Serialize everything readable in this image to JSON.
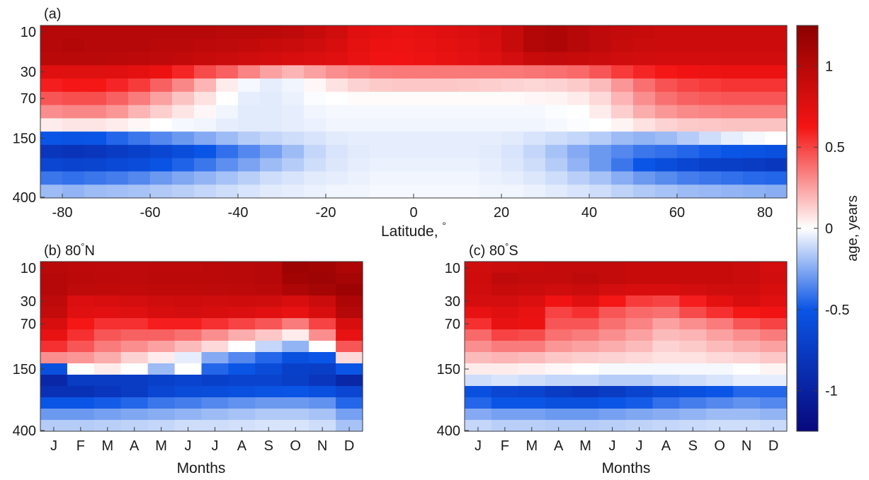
{
  "chart_data": [
    {
      "panel": "a",
      "type": "heatmap",
      "title": "(a)",
      "xlabel": "Latitude, °",
      "ylabel": "",
      "x_ticks": [
        "-80",
        "-60",
        "-40",
        "-20",
        "0",
        "20",
        "40",
        "60",
        "80"
      ],
      "y_ticks": [
        "10",
        "30",
        "70",
        "150",
        "400"
      ],
      "xlim": [
        -85,
        85
      ],
      "x_ticks_values": [
        -80,
        -60,
        -40,
        -20,
        0,
        20,
        40,
        60,
        80
      ],
      "y_levels_hPa": [
        10,
        15,
        20,
        30,
        50,
        70,
        100,
        125,
        150,
        200,
        250,
        300,
        400
      ],
      "x_centers": [
        -82.5,
        -77.5,
        -72.5,
        -67.5,
        -62.5,
        -57.5,
        -52.5,
        -47.5,
        -42.5,
        -37.5,
        -32.5,
        -27.5,
        -22.5,
        -17.5,
        -12.5,
        -7.5,
        -2.5,
        2.5,
        7.5,
        12.5,
        17.5,
        22.5,
        27.5,
        32.5,
        37.5,
        42.5,
        47.5,
        52.5,
        57.5,
        62.5,
        67.5,
        72.5,
        77.5,
        82.5
      ],
      "values": [
        [
          1.0,
          1.0,
          1.0,
          1.0,
          1.0,
          1.0,
          1.0,
          1.0,
          0.98,
          0.98,
          0.97,
          0.95,
          0.9,
          0.85,
          0.75,
          0.72,
          0.7,
          0.72,
          0.75,
          0.78,
          0.82,
          0.9,
          1.02,
          1.05,
          1.0,
          0.95,
          0.92,
          0.9,
          0.88,
          0.88,
          0.88,
          0.88,
          0.88,
          0.88
        ],
        [
          1.0,
          1.02,
          1.0,
          1.0,
          1.0,
          0.98,
          0.98,
          0.96,
          0.95,
          0.93,
          0.9,
          0.88,
          0.85,
          0.8,
          0.72,
          0.68,
          0.67,
          0.7,
          0.72,
          0.75,
          0.8,
          0.9,
          1.02,
          1.05,
          1.0,
          0.95,
          0.9,
          0.88,
          0.87,
          0.87,
          0.87,
          0.87,
          0.87,
          0.87
        ],
        [
          0.98,
          0.98,
          0.98,
          0.97,
          0.96,
          0.95,
          0.93,
          0.9,
          0.88,
          0.85,
          0.83,
          0.8,
          0.78,
          0.75,
          0.7,
          0.66,
          0.65,
          0.67,
          0.7,
          0.73,
          0.76,
          0.82,
          0.9,
          0.92,
          0.9,
          0.88,
          0.85,
          0.84,
          0.83,
          0.83,
          0.83,
          0.84,
          0.84,
          0.84
        ],
        [
          0.75,
          0.76,
          0.76,
          0.75,
          0.72,
          0.68,
          0.58,
          0.48,
          0.42,
          0.33,
          0.25,
          0.2,
          0.25,
          0.3,
          0.33,
          0.35,
          0.36,
          0.36,
          0.36,
          0.36,
          0.36,
          0.36,
          0.37,
          0.38,
          0.4,
          0.45,
          0.52,
          0.58,
          0.62,
          0.65,
          0.67,
          0.68,
          0.68,
          0.68
        ],
        [
          0.6,
          0.62,
          0.62,
          0.58,
          0.52,
          0.42,
          0.32,
          0.2,
          0.05,
          -0.02,
          -0.05,
          -0.03,
          0.02,
          0.08,
          0.12,
          0.14,
          0.15,
          0.15,
          0.15,
          0.14,
          0.13,
          0.12,
          0.11,
          0.12,
          0.14,
          0.18,
          0.28,
          0.38,
          0.46,
          0.5,
          0.52,
          0.54,
          0.54,
          0.54
        ],
        [
          0.45,
          0.47,
          0.47,
          0.42,
          0.35,
          0.25,
          0.16,
          0.08,
          0.0,
          -0.05,
          -0.06,
          -0.04,
          -0.01,
          0.0,
          0.01,
          0.01,
          0.01,
          0.01,
          0.01,
          0.01,
          0.01,
          0.01,
          0.02,
          0.03,
          0.05,
          0.1,
          0.2,
          0.3,
          0.38,
          0.42,
          0.44,
          0.45,
          0.45,
          0.45
        ],
        [
          0.3,
          0.32,
          0.32,
          0.28,
          0.2,
          0.13,
          0.07,
          0.02,
          -0.03,
          -0.06,
          -0.06,
          -0.05,
          -0.03,
          -0.02,
          -0.02,
          -0.02,
          -0.02,
          -0.02,
          -0.02,
          -0.02,
          -0.02,
          -0.02,
          -0.02,
          -0.01,
          0.0,
          0.05,
          0.13,
          0.22,
          0.28,
          0.31,
          0.33,
          0.34,
          0.34,
          0.34
        ],
        [
          0.05,
          0.07,
          0.07,
          0.05,
          0.02,
          0.0,
          -0.02,
          -0.03,
          -0.05,
          -0.06,
          -0.06,
          -0.05,
          -0.04,
          -0.03,
          -0.03,
          -0.03,
          -0.03,
          -0.03,
          -0.03,
          -0.03,
          -0.03,
          -0.03,
          -0.03,
          -0.02,
          -0.01,
          0.0,
          0.03,
          0.08,
          0.12,
          0.14,
          0.15,
          0.16,
          0.16,
          0.16
        ],
        [
          -0.5,
          -0.52,
          -0.5,
          -0.45,
          -0.4,
          -0.35,
          -0.3,
          -0.25,
          -0.2,
          -0.15,
          -0.12,
          -0.1,
          -0.08,
          -0.06,
          -0.05,
          -0.05,
          -0.05,
          -0.05,
          -0.05,
          -0.05,
          -0.05,
          -0.06,
          -0.08,
          -0.1,
          -0.12,
          -0.15,
          -0.2,
          -0.22,
          -0.2,
          -0.15,
          -0.1,
          -0.05,
          -0.02,
          0.0
        ],
        [
          -0.8,
          -0.82,
          -0.8,
          -0.75,
          -0.7,
          -0.65,
          -0.58,
          -0.5,
          -0.42,
          -0.35,
          -0.28,
          -0.2,
          -0.12,
          -0.08,
          -0.06,
          -0.05,
          -0.05,
          -0.05,
          -0.05,
          -0.05,
          -0.06,
          -0.08,
          -0.12,
          -0.18,
          -0.25,
          -0.3,
          -0.35,
          -0.4,
          -0.42,
          -0.45,
          -0.48,
          -0.5,
          -0.52,
          -0.55
        ],
        [
          -0.65,
          -0.68,
          -0.66,
          -0.62,
          -0.58,
          -0.52,
          -0.46,
          -0.4,
          -0.33,
          -0.27,
          -0.2,
          -0.15,
          -0.1,
          -0.07,
          -0.05,
          -0.04,
          -0.04,
          -0.04,
          -0.04,
          -0.04,
          -0.05,
          -0.07,
          -0.1,
          -0.15,
          -0.22,
          -0.3,
          -0.4,
          -0.5,
          -0.58,
          -0.65,
          -0.7,
          -0.72,
          -0.75,
          -0.78
        ],
        [
          -0.4,
          -0.42,
          -0.4,
          -0.38,
          -0.35,
          -0.3,
          -0.26,
          -0.22,
          -0.18,
          -0.14,
          -0.1,
          -0.08,
          -0.06,
          -0.05,
          -0.04,
          -0.03,
          -0.03,
          -0.03,
          -0.03,
          -0.03,
          -0.04,
          -0.05,
          -0.07,
          -0.1,
          -0.14,
          -0.18,
          -0.24,
          -0.3,
          -0.34,
          -0.38,
          -0.4,
          -0.42,
          -0.44,
          -0.45
        ],
        [
          -0.2,
          -0.22,
          -0.2,
          -0.19,
          -0.18,
          -0.16,
          -0.14,
          -0.12,
          -0.1,
          -0.08,
          -0.06,
          -0.05,
          -0.04,
          -0.03,
          -0.03,
          -0.02,
          -0.02,
          -0.02,
          -0.02,
          -0.02,
          -0.03,
          -0.03,
          -0.04,
          -0.06,
          -0.08,
          -0.1,
          -0.13,
          -0.16,
          -0.18,
          -0.2,
          -0.21,
          -0.22,
          -0.23,
          -0.24
        ]
      ]
    },
    {
      "panel": "b",
      "type": "heatmap",
      "title": "(b) 80",
      "title_deg": "°",
      "title_tail": "N",
      "xlabel": "Months",
      "ylabel": "",
      "x_ticks": [
        "J",
        "F",
        "M",
        "A",
        "M",
        "J",
        "J",
        "A",
        "S",
        "O",
        "N",
        "D"
      ],
      "y_ticks": [
        "10",
        "30",
        "70",
        "150",
        "400"
      ],
      "y_levels_hPa": [
        10,
        15,
        20,
        30,
        50,
        70,
        85,
        100,
        120,
        150,
        175,
        200,
        250,
        300,
        400
      ],
      "values": [
        [
          0.98,
          0.96,
          0.95,
          0.95,
          0.96,
          0.96,
          0.97,
          0.98,
          1.0,
          1.15,
          1.12,
          1.05
        ],
        [
          1.0,
          0.97,
          0.96,
          0.95,
          0.97,
          0.97,
          0.97,
          0.98,
          1.0,
          1.12,
          1.14,
          1.1
        ],
        [
          1.0,
          0.95,
          0.94,
          0.93,
          0.94,
          0.94,
          0.95,
          0.96,
          0.97,
          1.05,
          1.1,
          1.15
        ],
        [
          0.95,
          0.78,
          0.8,
          0.82,
          0.85,
          0.86,
          0.85,
          0.86,
          0.85,
          0.8,
          0.88,
          1.05
        ],
        [
          0.92,
          0.75,
          0.74,
          0.76,
          0.8,
          0.82,
          0.8,
          0.78,
          0.74,
          0.7,
          0.8,
          1.0
        ],
        [
          0.8,
          0.62,
          0.55,
          0.55,
          0.6,
          0.6,
          0.55,
          0.5,
          0.45,
          0.35,
          0.5,
          0.8
        ],
        [
          0.7,
          0.55,
          0.45,
          0.42,
          0.42,
          0.38,
          0.3,
          0.22,
          0.15,
          0.05,
          0.3,
          0.7
        ],
        [
          0.55,
          0.45,
          0.35,
          0.3,
          0.25,
          0.18,
          0.1,
          0.0,
          -0.12,
          -0.22,
          0.0,
          0.45
        ],
        [
          0.3,
          0.28,
          0.22,
          0.12,
          0.05,
          -0.05,
          -0.25,
          -0.35,
          -0.45,
          -0.55,
          -0.5,
          0.1
        ],
        [
          -0.55,
          0.0,
          0.05,
          0.0,
          -0.2,
          0.0,
          -0.45,
          -0.5,
          -0.6,
          -0.7,
          -0.72,
          -0.5
        ],
        [
          -0.95,
          -0.75,
          -0.75,
          -0.75,
          -0.7,
          -0.68,
          -0.7,
          -0.68,
          -0.68,
          -0.72,
          -0.8,
          -0.95
        ],
        [
          -0.85,
          -0.85,
          -0.8,
          -0.75,
          -0.65,
          -0.6,
          -0.58,
          -0.55,
          -0.52,
          -0.5,
          -0.55,
          -0.65
        ],
        [
          -0.5,
          -0.5,
          -0.48,
          -0.45,
          -0.4,
          -0.38,
          -0.35,
          -0.32,
          -0.3,
          -0.3,
          -0.32,
          -0.45
        ],
        [
          -0.3,
          -0.3,
          -0.28,
          -0.26,
          -0.24,
          -0.22,
          -0.2,
          -0.18,
          -0.16,
          -0.16,
          -0.18,
          -0.28
        ],
        [
          -0.15,
          -0.15,
          -0.14,
          -0.13,
          -0.12,
          -0.1,
          -0.1,
          -0.09,
          -0.08,
          -0.08,
          -0.1,
          -0.18
        ]
      ]
    },
    {
      "panel": "c",
      "type": "heatmap",
      "title": "(c) 80",
      "title_deg": "°",
      "title_tail": "S",
      "xlabel": "Months",
      "ylabel": "",
      "x_ticks": [
        "J",
        "F",
        "M",
        "A",
        "M",
        "J",
        "J",
        "A",
        "S",
        "O",
        "N",
        "D"
      ],
      "y_ticks": [
        "10",
        "30",
        "70",
        "150",
        "400"
      ],
      "y_levels_hPa": [
        10,
        15,
        20,
        30,
        50,
        70,
        85,
        100,
        120,
        150,
        175,
        200,
        250,
        300,
        400
      ],
      "values": [
        [
          0.85,
          0.88,
          0.9,
          0.92,
          0.92,
          0.92,
          0.9,
          0.9,
          0.9,
          0.9,
          0.88,
          0.82
        ],
        [
          0.86,
          0.95,
          0.92,
          0.92,
          0.95,
          0.92,
          0.9,
          0.9,
          0.9,
          0.9,
          0.88,
          0.84
        ],
        [
          0.85,
          0.9,
          0.88,
          0.85,
          0.88,
          0.82,
          0.8,
          0.8,
          0.82,
          0.85,
          0.85,
          0.8
        ],
        [
          0.82,
          0.82,
          0.78,
          0.65,
          0.75,
          0.62,
          0.52,
          0.5,
          0.6,
          0.72,
          0.8,
          0.75
        ],
        [
          0.7,
          0.75,
          0.7,
          0.5,
          0.55,
          0.45,
          0.4,
          0.38,
          0.48,
          0.55,
          0.62,
          0.65
        ],
        [
          0.55,
          0.7,
          0.68,
          0.45,
          0.45,
          0.38,
          0.33,
          0.25,
          0.3,
          0.35,
          0.45,
          0.5
        ],
        [
          0.4,
          0.5,
          0.48,
          0.38,
          0.35,
          0.3,
          0.25,
          0.18,
          0.2,
          0.25,
          0.3,
          0.35
        ],
        [
          0.3,
          0.35,
          0.35,
          0.28,
          0.25,
          0.22,
          0.18,
          0.12,
          0.14,
          0.18,
          0.22,
          0.25
        ],
        [
          0.18,
          0.2,
          0.18,
          0.15,
          0.13,
          0.12,
          0.1,
          0.08,
          0.08,
          0.1,
          0.12,
          0.15
        ],
        [
          0.05,
          0.05,
          0.04,
          0.02,
          0.0,
          -0.02,
          -0.02,
          -0.02,
          -0.02,
          -0.02,
          0.0,
          0.03
        ],
        [
          -0.1,
          -0.08,
          -0.1,
          -0.12,
          -0.12,
          -0.15,
          -0.15,
          -0.12,
          -0.1,
          -0.08,
          -0.05,
          -0.05
        ],
        [
          -0.55,
          -0.65,
          -0.68,
          -0.75,
          -0.8,
          -0.75,
          -0.68,
          -0.6,
          -0.55,
          -0.5,
          -0.45,
          -0.45
        ],
        [
          -0.45,
          -0.5,
          -0.5,
          -0.55,
          -0.55,
          -0.5,
          -0.48,
          -0.42,
          -0.38,
          -0.35,
          -0.32,
          -0.35
        ],
        [
          -0.25,
          -0.28,
          -0.28,
          -0.3,
          -0.3,
          -0.28,
          -0.26,
          -0.24,
          -0.22,
          -0.2,
          -0.2,
          -0.22
        ],
        [
          -0.12,
          -0.14,
          -0.14,
          -0.15,
          -0.15,
          -0.14,
          -0.13,
          -0.12,
          -0.11,
          -0.1,
          -0.1,
          -0.11
        ]
      ]
    }
  ],
  "colorbar": {
    "label": "age, years",
    "ticks": [
      "-1",
      "-0.5",
      "0",
      "0.5",
      "1"
    ],
    "tick_values": [
      -1,
      -0.5,
      0,
      0.5,
      1
    ],
    "range": [
      -1.25,
      1.25
    ],
    "colors": {
      "min": "#08087d",
      "low": "#0a55e6",
      "mid": "#ffffff",
      "high": "#f51414",
      "max": "#8c0000"
    }
  }
}
